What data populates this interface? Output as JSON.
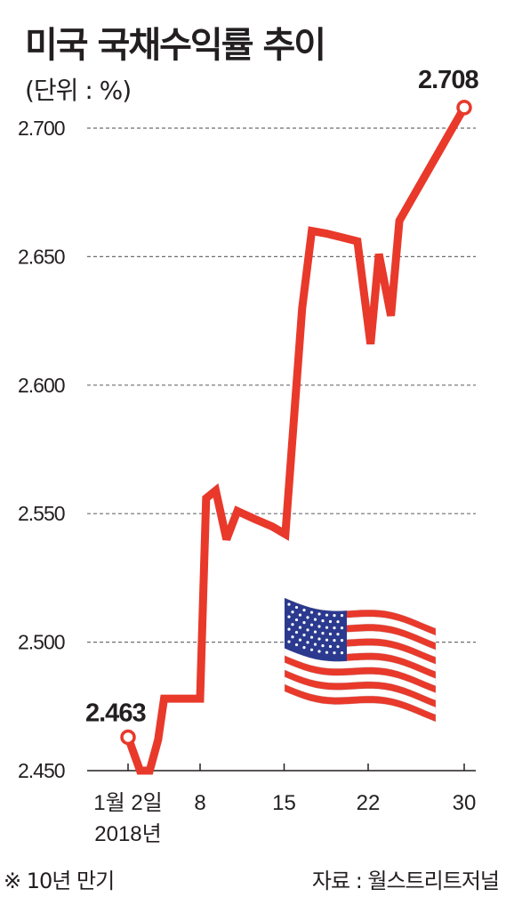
{
  "title": "미국 국채수익률 추이",
  "unit": "(단위 : %)",
  "note": "※ 10년 만기",
  "source": "자료 : 월스트리트저널",
  "flag_icon": "us-flag-icon",
  "colors": {
    "line": "#e8392b",
    "text": "#231f20",
    "grid": "#6d6e71",
    "marker_fill": "#ffffff"
  },
  "chart_data": {
    "type": "line",
    "title": "미국 국채수익률 추이",
    "ylabel": "(단위 : %)",
    "ylim": [
      2.45,
      2.71
    ],
    "yticks": [
      2.45,
      2.5,
      2.55,
      2.6,
      2.65,
      2.7
    ],
    "ytick_labels": [
      "2.450",
      "2.500",
      "2.550",
      "2.600",
      "2.650",
      "2.700"
    ],
    "grid": true,
    "xlim": [
      1,
      31
    ],
    "xticks": [
      {
        "x": 2,
        "label": "1월 2일",
        "sublabel": "2018년"
      },
      {
        "x": 8,
        "label": "8"
      },
      {
        "x": 15,
        "label": "15"
      },
      {
        "x": 22,
        "label": "22"
      },
      {
        "x": 30,
        "label": "30"
      }
    ],
    "x": [
      2,
      3,
      3.8,
      4.5,
      5,
      5.6,
      6.5,
      8,
      8.5,
      9.3,
      10.2,
      11.1,
      12.5,
      14,
      15.1,
      16.5,
      17.3,
      18.5,
      21.1,
      22.2,
      22.9,
      23.9,
      24.6,
      30
    ],
    "values": [
      2.463,
      2.45,
      2.45,
      2.462,
      2.478,
      2.478,
      2.478,
      2.478,
      2.556,
      2.559,
      2.54,
      2.551,
      2.548,
      2.545,
      2.542,
      2.63,
      2.66,
      2.659,
      2.656,
      2.616,
      2.651,
      2.627,
      2.664,
      2.708
    ],
    "annotations": [
      {
        "x": 2,
        "y": 2.463,
        "label": "2.463"
      },
      {
        "x": 30,
        "y": 2.708,
        "label": "2.708"
      }
    ]
  }
}
